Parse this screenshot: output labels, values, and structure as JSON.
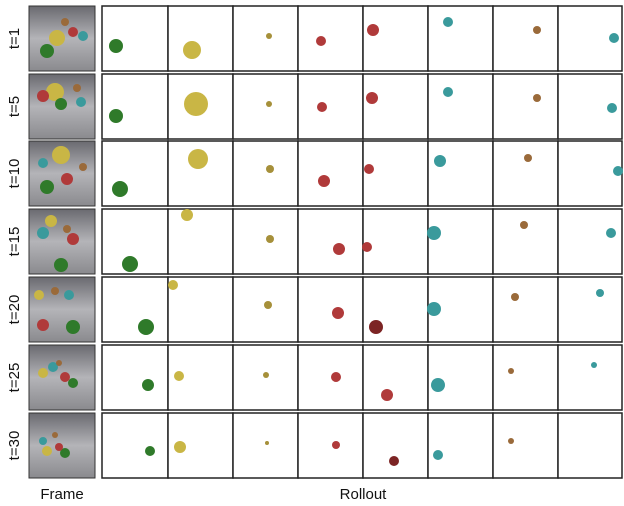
{
  "row_labels": [
    "t=1",
    "t=5",
    "t=10",
    "t=15",
    "t=20",
    "t=25",
    "t=30"
  ],
  "frame_label": "Frame",
  "rollout_label": "Rollout"
}
